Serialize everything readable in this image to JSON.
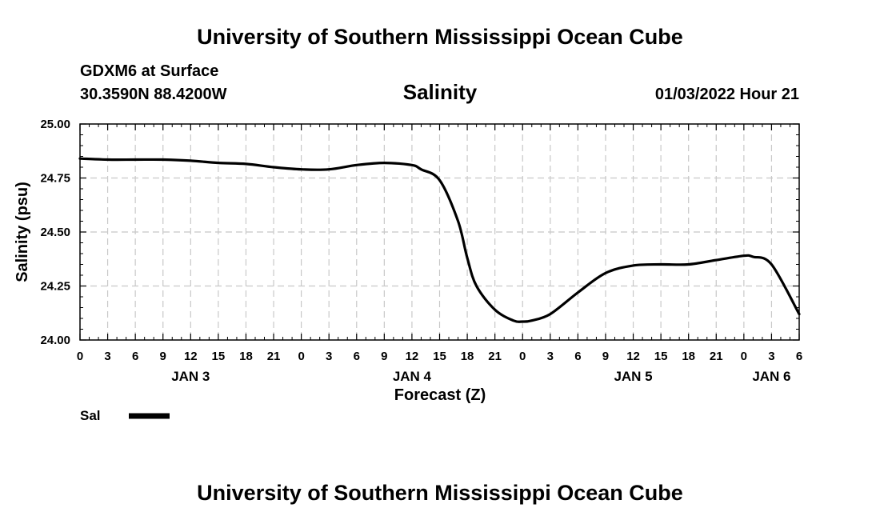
{
  "page": {
    "title_top": "University of Southern Mississippi Ocean Cube",
    "title_bottom": "University of Southern Mississippi Ocean Cube",
    "station": "GDXM6 at Surface",
    "coords": "30.3590N  88.4200W",
    "valid_time": "01/03/2022 Hour 21"
  },
  "colors": {
    "line": "#000000",
    "grid": "#c8c8c8",
    "background": "#ffffff"
  },
  "chart_data": {
    "type": "line",
    "title": "Salinity",
    "xlabel": "Forecast (Z)",
    "ylabel": "Salinity (psu)",
    "xlim": [
      0,
      78
    ],
    "ylim": [
      24.0,
      25.0
    ],
    "grid": true,
    "x_ticks": [
      0,
      3,
      6,
      9,
      12,
      15,
      18,
      21,
      24,
      27,
      30,
      33,
      36,
      39,
      42,
      45,
      48,
      51,
      54,
      57,
      60,
      63,
      66,
      69,
      72,
      75,
      78
    ],
    "x_tick_labels": [
      "0",
      "3",
      "6",
      "9",
      "12",
      "15",
      "18",
      "21",
      "0",
      "3",
      "6",
      "9",
      "12",
      "15",
      "18",
      "21",
      "0",
      "3",
      "6",
      "9",
      "12",
      "15",
      "18",
      "21",
      "0",
      "3",
      "6"
    ],
    "y_ticks": [
      24.0,
      24.25,
      24.5,
      24.75,
      25.0
    ],
    "y_tick_labels": [
      "24.00",
      "24.25",
      "24.50",
      "24.75",
      "25.00"
    ],
    "date_labels": [
      {
        "label": "JAN 3",
        "x": 12
      },
      {
        "label": "JAN 4",
        "x": 36
      },
      {
        "label": "JAN 5",
        "x": 60
      },
      {
        "label": "JAN 6",
        "x": 75
      }
    ],
    "legend": {
      "label": "Sal",
      "position": "bottom-left"
    },
    "series": [
      {
        "name": "Sal",
        "x": [
          0,
          3,
          6,
          9,
          12,
          15,
          18,
          21,
          24,
          27,
          30,
          33,
          36,
          37,
          39,
          41,
          42,
          43,
          45,
          47,
          48,
          49,
          51,
          54,
          57,
          60,
          63,
          66,
          69,
          72,
          73,
          75,
          78
        ],
        "values": [
          24.84,
          24.835,
          24.835,
          24.835,
          24.83,
          24.82,
          24.815,
          24.8,
          24.79,
          24.79,
          24.81,
          24.82,
          24.81,
          24.79,
          24.74,
          24.55,
          24.38,
          24.25,
          24.14,
          24.09,
          24.085,
          24.09,
          24.12,
          24.22,
          24.31,
          24.345,
          24.35,
          24.35,
          24.37,
          24.39,
          24.385,
          24.35,
          24.12
        ]
      }
    ]
  }
}
